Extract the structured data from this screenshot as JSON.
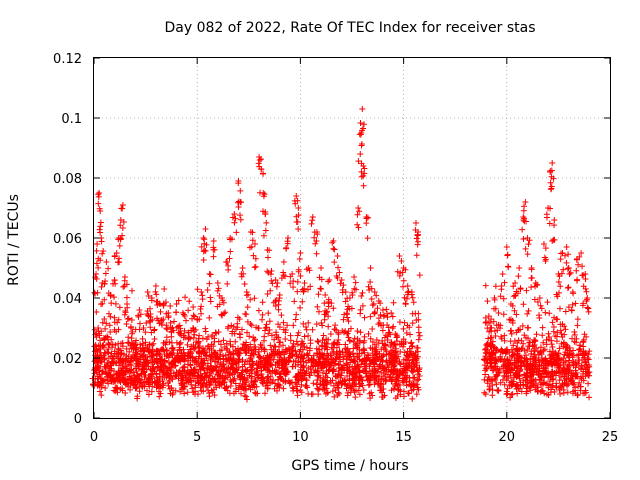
{
  "chart_data": {
    "type": "scatter",
    "title": "Day 082 of 2022, Rate Of TEC Index for receiver stas",
    "xlabel": "GPS time / hours",
    "ylabel": "ROTI / TECUs",
    "xlim": [
      0,
      25
    ],
    "ylim": [
      0,
      0.12
    ],
    "xticks": [
      0,
      5,
      10,
      15,
      20,
      25
    ],
    "xtick_labels": [
      "0",
      "5",
      "10",
      "15",
      "20",
      "25"
    ],
    "yticks": [
      0,
      0.02,
      0.04,
      0.06,
      0.08,
      0.1,
      0.12
    ],
    "ytick_labels": [
      "0",
      "0.02",
      "0.04",
      "0.06",
      "0.08",
      "0.1",
      "0.12"
    ],
    "grid": true,
    "marker": "+",
    "color": "#ff0000",
    "data_gap_hours": [
      15.8,
      18.9
    ],
    "series": [
      {
        "name": "ROTI",
        "points": [
          [
            0.0,
            0.016
          ],
          [
            0.1,
            0.048
          ],
          [
            0.15,
            0.058
          ],
          [
            0.2,
            0.03
          ],
          [
            0.25,
            0.075
          ],
          [
            0.3,
            0.069
          ],
          [
            0.35,
            0.06
          ],
          [
            0.4,
            0.045
          ],
          [
            0.5,
            0.033
          ],
          [
            0.6,
            0.052
          ],
          [
            0.7,
            0.025
          ],
          [
            0.8,
            0.041
          ],
          [
            0.9,
            0.02
          ],
          [
            1.0,
            0.046
          ],
          [
            1.1,
            0.055
          ],
          [
            1.2,
            0.06
          ],
          [
            1.3,
            0.066
          ],
          [
            1.4,
            0.071
          ],
          [
            1.5,
            0.047
          ],
          [
            1.6,
            0.038
          ],
          [
            1.8,
            0.03
          ],
          [
            2.0,
            0.025
          ],
          [
            2.2,
            0.036
          ],
          [
            2.4,
            0.03
          ],
          [
            2.6,
            0.042
          ],
          [
            2.8,
            0.04
          ],
          [
            3.0,
            0.044
          ],
          [
            3.2,
            0.038
          ],
          [
            3.4,
            0.043
          ],
          [
            3.6,
            0.035
          ],
          [
            3.8,
            0.03
          ],
          [
            4.0,
            0.038
          ],
          [
            4.2,
            0.029
          ],
          [
            4.4,
            0.034
          ],
          [
            4.6,
            0.027
          ],
          [
            4.8,
            0.03
          ],
          [
            5.0,
            0.033
          ],
          [
            5.2,
            0.042
          ],
          [
            5.3,
            0.06
          ],
          [
            5.4,
            0.063
          ],
          [
            5.6,
            0.048
          ],
          [
            5.8,
            0.059
          ],
          [
            6.0,
            0.045
          ],
          [
            6.2,
            0.04
          ],
          [
            6.4,
            0.052
          ],
          [
            6.6,
            0.06
          ],
          [
            6.8,
            0.068
          ],
          [
            7.0,
            0.079
          ],
          [
            7.1,
            0.072
          ],
          [
            7.2,
            0.05
          ],
          [
            7.4,
            0.042
          ],
          [
            7.6,
            0.062
          ],
          [
            7.8,
            0.058
          ],
          [
            8.0,
            0.087
          ],
          [
            8.1,
            0.083
          ],
          [
            8.2,
            0.075
          ],
          [
            8.3,
            0.068
          ],
          [
            8.4,
            0.056
          ],
          [
            8.6,
            0.049
          ],
          [
            8.8,
            0.046
          ],
          [
            9.0,
            0.041
          ],
          [
            9.2,
            0.052
          ],
          [
            9.4,
            0.06
          ],
          [
            9.6,
            0.048
          ],
          [
            9.8,
            0.074
          ],
          [
            9.9,
            0.07
          ],
          [
            10.0,
            0.055
          ],
          [
            10.2,
            0.045
          ],
          [
            10.4,
            0.05
          ],
          [
            10.6,
            0.067
          ],
          [
            10.8,
            0.062
          ],
          [
            11.0,
            0.05
          ],
          [
            11.2,
            0.041
          ],
          [
            11.4,
            0.046
          ],
          [
            11.6,
            0.059
          ],
          [
            11.8,
            0.054
          ],
          [
            12.0,
            0.046
          ],
          [
            12.2,
            0.042
          ],
          [
            12.4,
            0.04
          ],
          [
            12.6,
            0.047
          ],
          [
            12.8,
            0.07
          ],
          [
            12.9,
            0.088
          ],
          [
            12.95,
            0.095
          ],
          [
            13.0,
            0.103
          ],
          [
            13.05,
            0.084
          ],
          [
            13.2,
            0.067
          ],
          [
            13.4,
            0.05
          ],
          [
            13.6,
            0.042
          ],
          [
            13.8,
            0.039
          ],
          [
            14.0,
            0.036
          ],
          [
            14.2,
            0.031
          ],
          [
            14.4,
            0.035
          ],
          [
            14.6,
            0.028
          ],
          [
            14.8,
            0.054
          ],
          [
            15.0,
            0.05
          ],
          [
            15.2,
            0.044
          ],
          [
            15.4,
            0.042
          ],
          [
            15.6,
            0.065
          ],
          [
            15.7,
            0.062
          ],
          [
            19.0,
            0.032
          ],
          [
            19.2,
            0.03
          ],
          [
            19.4,
            0.04
          ],
          [
            19.6,
            0.035
          ],
          [
            19.8,
            0.048
          ],
          [
            20.0,
            0.057
          ],
          [
            20.2,
            0.038
          ],
          [
            20.4,
            0.045
          ],
          [
            20.6,
            0.05
          ],
          [
            20.8,
            0.067
          ],
          [
            20.9,
            0.072
          ],
          [
            21.0,
            0.06
          ],
          [
            21.2,
            0.05
          ],
          [
            21.4,
            0.045
          ],
          [
            21.6,
            0.04
          ],
          [
            21.8,
            0.058
          ],
          [
            22.0,
            0.07
          ],
          [
            22.1,
            0.082
          ],
          [
            22.2,
            0.085
          ],
          [
            22.3,
            0.066
          ],
          [
            22.5,
            0.048
          ],
          [
            22.7,
            0.055
          ],
          [
            22.9,
            0.057
          ],
          [
            23.0,
            0.05
          ],
          [
            23.2,
            0.042
          ],
          [
            23.4,
            0.053
          ],
          [
            23.6,
            0.055
          ],
          [
            23.8,
            0.048
          ],
          [
            23.9,
            0.04
          ]
        ]
      }
    ]
  }
}
